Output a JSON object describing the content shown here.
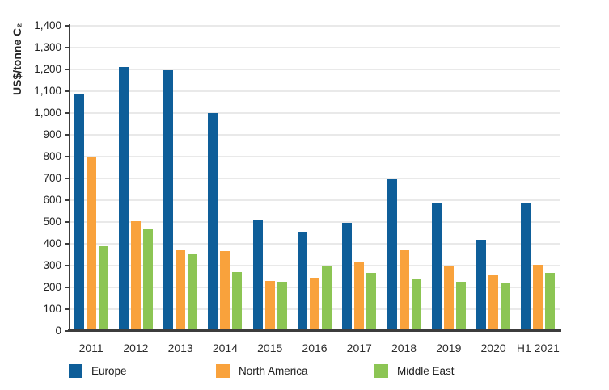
{
  "chart_data": {
    "type": "bar",
    "title": "",
    "xlabel": "",
    "ylabel": "US$/tonne C₂",
    "ylim": [
      0,
      1400
    ],
    "ytick_step": 100,
    "ytick_labels": [
      "0",
      "100",
      "200",
      "300",
      "400",
      "500",
      "600",
      "700",
      "800",
      "900",
      "1,000",
      "1,100",
      "1,200",
      "1,300",
      "1,400"
    ],
    "grid": true,
    "legend_position": "bottom",
    "categories": [
      "2011",
      "2012",
      "2013",
      "2014",
      "2015",
      "2016",
      "2017",
      "2018",
      "2019",
      "2020",
      "H1 2021"
    ],
    "series": [
      {
        "name": "Europe",
        "color": "#0E5E99",
        "values": [
          1090,
          1210,
          1195,
          1000,
          510,
          455,
          495,
          695,
          585,
          420,
          590
        ]
      },
      {
        "name": "North America",
        "color": "#F9A23C",
        "values": [
          800,
          505,
          370,
          365,
          230,
          245,
          315,
          375,
          295,
          255,
          305
        ]
      },
      {
        "name": "Middle East",
        "color": "#8CC554",
        "values": [
          390,
          465,
          355,
          270,
          225,
          300,
          265,
          240,
          225,
          220,
          265
        ]
      }
    ]
  },
  "style_colors": {
    "axis": "#3C3C3C",
    "gridline": "#E9E9E9",
    "text": "#262626",
    "background": "#FFFFFF"
  },
  "legend": {
    "items": [
      {
        "label": "Europe"
      },
      {
        "label": "North America"
      },
      {
        "label": "Middle East"
      }
    ]
  }
}
